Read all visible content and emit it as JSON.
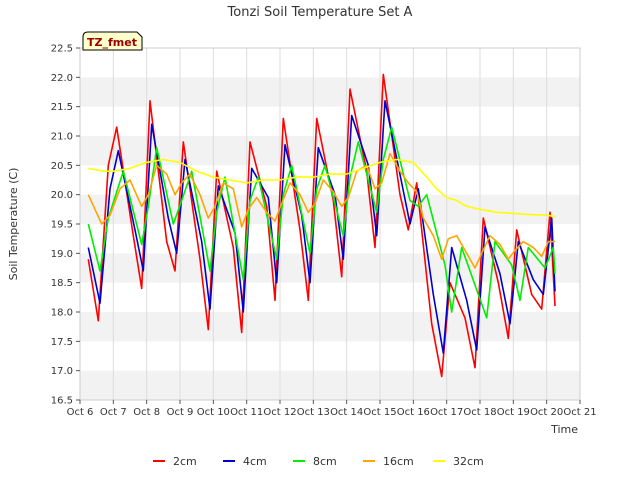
{
  "chart_data": {
    "type": "line",
    "title": "Tonzi Soil Temperature Set A",
    "xlabel": "Time",
    "ylabel": "Soil Temperature (C)",
    "site_badge": "TZ_fmet",
    "xlim": [
      6,
      21
    ],
    "ylim": [
      16.5,
      22.5
    ],
    "grid": true,
    "legend_position": "bottom",
    "x_ticks": [
      6,
      7,
      8,
      9,
      10,
      11,
      12,
      13,
      14,
      15,
      16,
      17,
      18,
      19,
      20,
      21
    ],
    "x_tick_labels": [
      "Oct 6",
      "Oct 7",
      "Oct 8",
      "Oct 9",
      "Oct 10",
      "Oct 11",
      "Oct 12",
      "Oct 13",
      "Oct 14",
      "Oct 15",
      "Oct 16",
      "Oct 17",
      "Oct 18",
      "Oct 19",
      "Oct 20",
      "Oct 21"
    ],
    "y_ticks": [
      16.5,
      17.0,
      17.5,
      18.0,
      18.5,
      19.0,
      19.5,
      20.0,
      20.5,
      21.0,
      21.5,
      22.0,
      22.5
    ],
    "y_tick_labels": [
      "16.5",
      "17.0",
      "17.5",
      "18.0",
      "18.5",
      "19.0",
      "19.5",
      "20.0",
      "20.5",
      "21.0",
      "21.5",
      "22.0",
      "22.5"
    ],
    "series": [
      {
        "name": "2cm",
        "color": "#ff0000",
        "x": [
          6.25,
          6.55,
          6.85,
          7.1,
          7.6,
          7.85,
          8.1,
          8.6,
          8.85,
          9.1,
          9.6,
          9.85,
          10.1,
          10.6,
          10.85,
          11.1,
          11.6,
          11.85,
          12.1,
          12.6,
          12.85,
          13.1,
          13.6,
          13.85,
          14.1,
          14.6,
          14.85,
          15.1,
          15.6,
          15.85,
          16.1,
          16.55,
          16.85,
          17.1,
          17.55,
          17.85,
          18.1,
          18.55,
          18.85,
          19.1,
          19.55,
          19.85,
          20.1,
          20.25
        ],
        "y": [
          18.9,
          17.85,
          20.5,
          21.15,
          19.3,
          18.4,
          21.6,
          19.2,
          18.7,
          20.9,
          18.9,
          17.7,
          20.4,
          19.1,
          17.65,
          20.9,
          19.8,
          18.2,
          21.3,
          19.4,
          18.2,
          21.3,
          19.9,
          18.6,
          21.8,
          20.4,
          19.1,
          22.05,
          20.0,
          19.4,
          20.2,
          17.8,
          16.9,
          18.5,
          17.9,
          17.05,
          19.6,
          18.5,
          17.55,
          19.4,
          18.3,
          18.05,
          19.7,
          18.1
        ]
      },
      {
        "name": "4cm",
        "color": "#0000cc",
        "x": [
          6.25,
          6.6,
          6.9,
          7.15,
          7.65,
          7.9,
          8.15,
          8.65,
          8.9,
          9.15,
          9.65,
          9.9,
          10.15,
          10.65,
          10.9,
          11.15,
          11.65,
          11.9,
          12.15,
          12.65,
          12.9,
          13.15,
          13.65,
          13.9,
          14.15,
          14.65,
          14.9,
          15.15,
          15.65,
          15.9,
          16.15,
          16.6,
          16.9,
          17.15,
          17.6,
          17.9,
          18.15,
          18.6,
          18.9,
          19.15,
          19.6,
          19.9,
          20.15,
          20.25
        ],
        "y": [
          19.1,
          18.15,
          20.1,
          20.75,
          19.4,
          18.7,
          21.2,
          19.6,
          19.0,
          20.6,
          19.2,
          18.05,
          20.15,
          19.35,
          18.0,
          20.45,
          19.95,
          18.5,
          20.85,
          19.65,
          18.5,
          20.8,
          20.0,
          18.9,
          21.35,
          20.5,
          19.3,
          21.6,
          20.2,
          19.5,
          20.1,
          18.3,
          17.3,
          19.1,
          18.2,
          17.35,
          19.45,
          18.65,
          17.8,
          19.2,
          18.55,
          18.3,
          19.6,
          18.35
        ]
      },
      {
        "name": "8cm",
        "color": "#00ee00",
        "x": [
          6.25,
          6.6,
          6.85,
          7.3,
          7.85,
          8.05,
          8.3,
          8.8,
          9.05,
          9.35,
          9.9,
          10.1,
          10.35,
          10.9,
          11.1,
          11.35,
          11.9,
          12.1,
          12.35,
          12.9,
          13.1,
          13.35,
          13.9,
          14.1,
          14.35,
          14.9,
          15.1,
          15.35,
          15.9,
          16.15,
          16.4,
          16.95,
          17.15,
          17.45,
          17.95,
          18.2,
          18.45,
          18.95,
          19.2,
          19.45,
          19.95,
          20.2,
          20.25
        ],
        "y": [
          19.5,
          18.7,
          19.6,
          20.4,
          19.15,
          19.8,
          20.8,
          19.5,
          19.9,
          20.4,
          18.7,
          19.7,
          20.3,
          18.55,
          19.9,
          20.3,
          18.9,
          20.0,
          20.5,
          19.0,
          20.1,
          20.5,
          19.3,
          20.3,
          20.9,
          19.7,
          20.6,
          21.15,
          19.9,
          19.8,
          20.0,
          18.8,
          18.0,
          19.1,
          18.3,
          17.9,
          19.2,
          18.8,
          18.2,
          19.1,
          18.75,
          19.1,
          18.65
        ]
      },
      {
        "name": "16cm",
        "color": "#ffa500",
        "x": [
          6.25,
          6.65,
          6.9,
          7.2,
          7.5,
          7.85,
          8.05,
          8.3,
          8.6,
          8.85,
          9.05,
          9.3,
          9.6,
          9.85,
          10.05,
          10.3,
          10.6,
          10.85,
          11.05,
          11.3,
          11.6,
          11.85,
          12.05,
          12.3,
          12.6,
          12.85,
          13.05,
          13.3,
          13.6,
          13.85,
          14.05,
          14.3,
          14.6,
          14.85,
          15.05,
          15.3,
          15.6,
          15.85,
          16.1,
          16.3,
          16.6,
          16.85,
          17.05,
          17.3,
          17.6,
          17.85,
          18.05,
          18.3,
          18.6,
          18.85,
          19.05,
          19.3,
          19.6,
          19.85,
          20.05,
          20.25
        ],
        "y": [
          20.0,
          19.5,
          19.65,
          20.1,
          20.25,
          19.8,
          20.0,
          20.5,
          20.35,
          20.0,
          20.2,
          20.35,
          20.0,
          19.6,
          19.8,
          20.2,
          20.1,
          19.45,
          19.75,
          19.95,
          19.7,
          19.55,
          19.85,
          20.2,
          20.0,
          19.7,
          19.85,
          20.25,
          20.05,
          19.8,
          19.95,
          20.4,
          20.5,
          20.1,
          20.2,
          20.7,
          20.4,
          20.2,
          20.05,
          19.6,
          19.3,
          18.9,
          19.25,
          19.3,
          19.0,
          18.75,
          19.0,
          19.3,
          19.15,
          18.9,
          19.05,
          19.2,
          19.1,
          18.95,
          19.2,
          19.2
        ]
      },
      {
        "name": "32cm",
        "color": "#ffff00",
        "x": [
          6.25,
          6.7,
          7.0,
          7.5,
          8.0,
          8.5,
          9.0,
          9.5,
          10.0,
          10.5,
          11.0,
          11.5,
          12.0,
          12.5,
          13.0,
          13.5,
          14.0,
          14.5,
          15.0,
          15.5,
          16.0,
          16.4,
          16.7,
          17.0,
          17.3,
          17.6,
          18.0,
          18.5,
          19.0,
          19.5,
          20.0,
          20.25
        ],
        "y": [
          20.45,
          20.4,
          20.4,
          20.45,
          20.55,
          20.6,
          20.55,
          20.4,
          20.3,
          20.25,
          20.2,
          20.25,
          20.25,
          20.3,
          20.3,
          20.35,
          20.35,
          20.45,
          20.55,
          20.6,
          20.55,
          20.3,
          20.1,
          19.95,
          19.9,
          19.8,
          19.75,
          19.7,
          19.68,
          19.66,
          19.65,
          19.63
        ]
      }
    ]
  }
}
